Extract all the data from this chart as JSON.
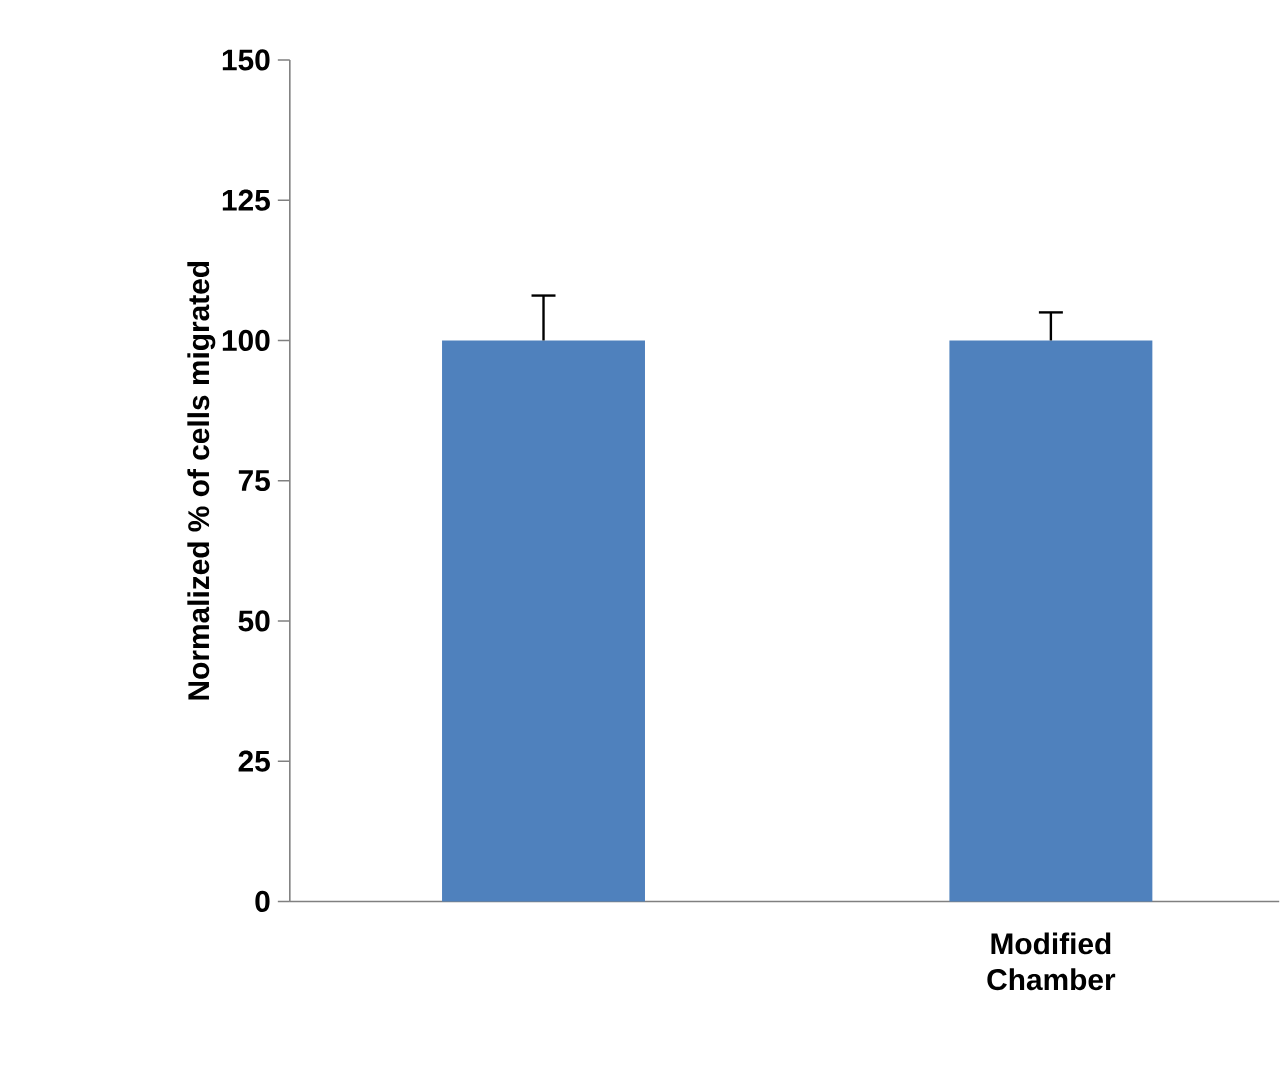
{
  "chart_data": {
    "type": "bar",
    "ylabel": "Normalized % of cells migrated",
    "categories": [
      null,
      "Modified Chamber"
    ],
    "values": [
      100,
      100
    ],
    "color": "#4f81bd",
    "errors": [
      [
        100,
        108
      ],
      [
        100,
        105
      ]
    ],
    "ylim": [
      0,
      150
    ],
    "yticks": [
      0,
      25,
      50,
      75,
      100,
      125,
      150
    ]
  }
}
